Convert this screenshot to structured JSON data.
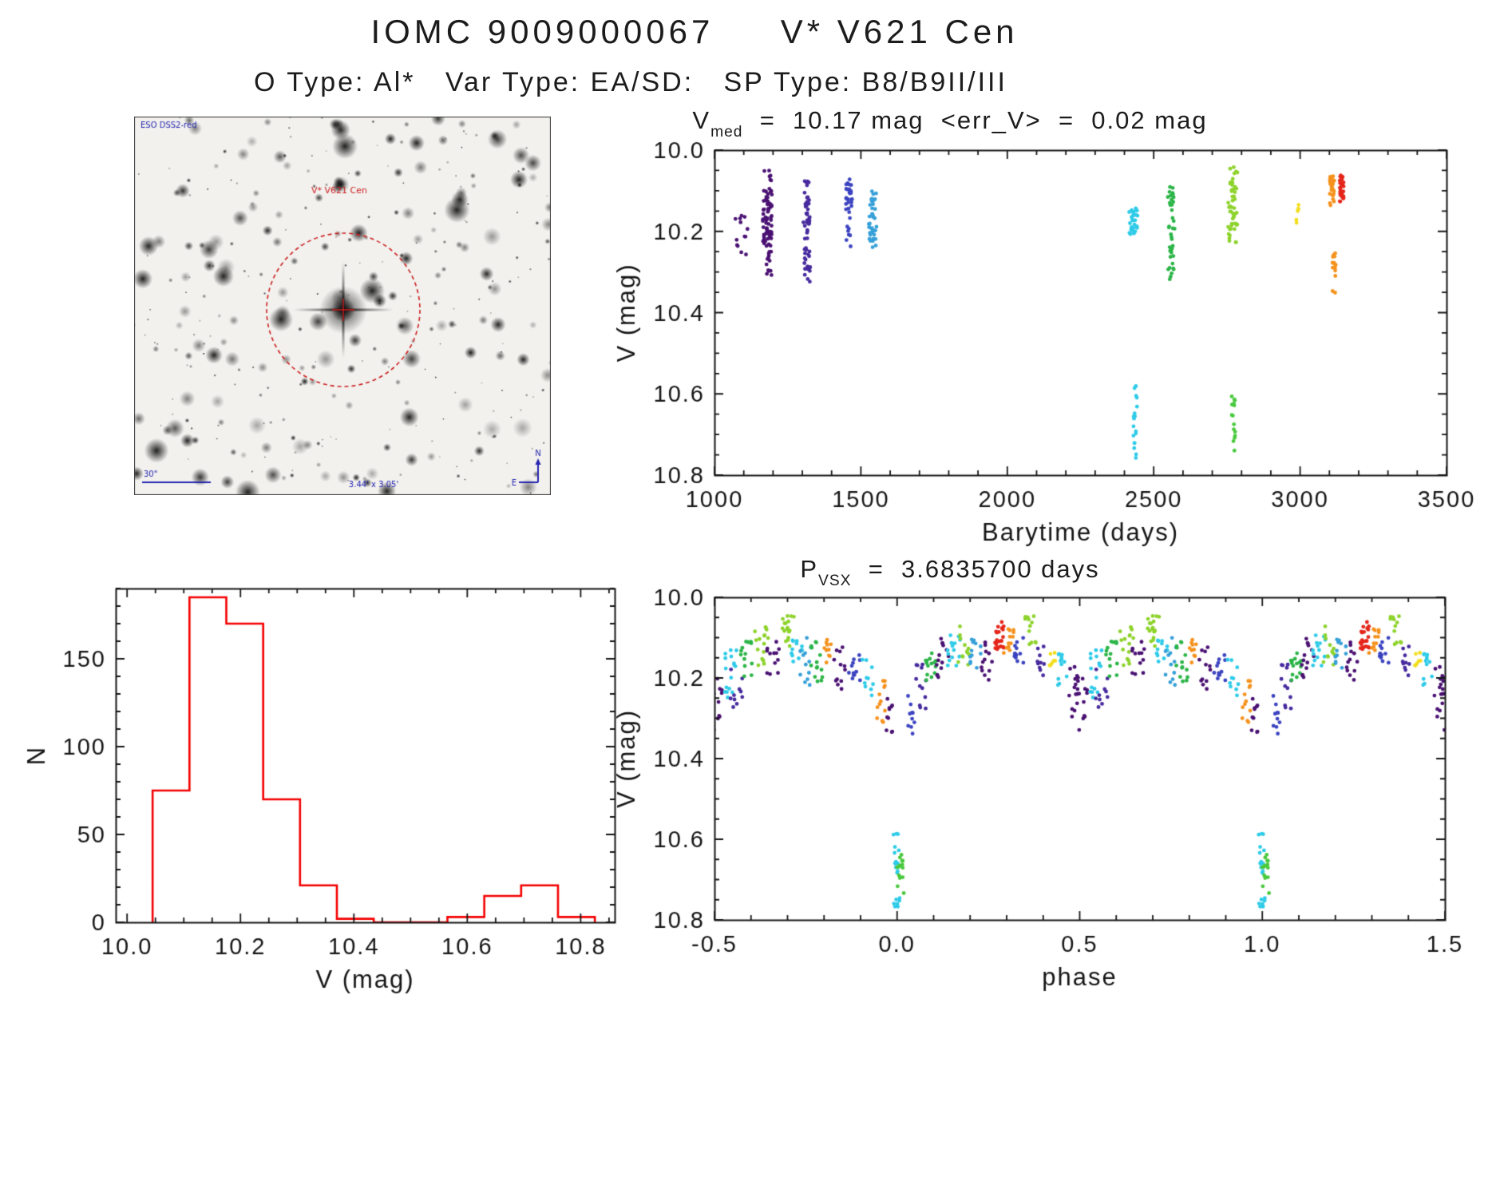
{
  "page": {
    "title_line1": "IOMC 9009000067     V* V621 Cen",
    "title_line2": "O Type: Al*   Var Type: EA/SD:   SP Type: B8/B9II/III",
    "text_color": "#1c1c1c"
  },
  "finding_chart": {
    "survey_label": "ESO DSS2-red",
    "star_label": "V* V621 Cen",
    "scale_label": "30\"",
    "fov_label": "3.44' x 3.05'",
    "compass_north": "N",
    "compass_east": "E",
    "annotation_color": "#cc2020",
    "text_color": "#2525b0",
    "seed": 9,
    "n_stars": 330
  },
  "chart_data": [
    {
      "id": "lightcurve",
      "type": "scatter",
      "title": {
        "base": "V",
        "sub": "med",
        "rest": "  =  10.17 mag  <err_V>  =  0.02 mag"
      },
      "xlabel": "Barytime (days)",
      "ylabel": "V (mag)",
      "xlim": [
        1000,
        3500
      ],
      "ylim": [
        10.0,
        10.8
      ],
      "y_inverted": true,
      "xticks": [
        1000,
        1500,
        2000,
        2500,
        3000,
        3500
      ],
      "xtick_labels": [
        "1000",
        "1500",
        "2000",
        "2500",
        "3000",
        "3500"
      ],
      "yticks": [
        10.0,
        10.2,
        10.4,
        10.6,
        10.8
      ],
      "ytick_labels": [
        "10.0",
        "10.2",
        "10.4",
        "10.6",
        "10.8"
      ],
      "xminor": 100,
      "yminor": 0.05,
      "seed": 3,
      "repeat_offsets": [
        0
      ],
      "clusters": [
        {
          "x": 1090,
          "w": 60,
          "y": [
            10.16,
            10.27
          ],
          "n": 13,
          "color": "#4a1173"
        },
        {
          "x": 1180,
          "w": 30,
          "y": [
            10.05,
            10.31
          ],
          "n": 58,
          "color": "#4a1173"
        },
        {
          "x": 1185,
          "w": 22,
          "y": [
            10.1,
            10.22
          ],
          "n": 30,
          "color": "#4a1173"
        },
        {
          "x": 1315,
          "w": 24,
          "y": [
            10.06,
            10.33
          ],
          "n": 38,
          "color": "#472a9e"
        },
        {
          "x": 1318,
          "w": 16,
          "y": [
            10.1,
            10.2
          ],
          "n": 20,
          "color": "#472a9e"
        },
        {
          "x": 1460,
          "w": 22,
          "y": [
            10.07,
            10.25
          ],
          "n": 34,
          "color": "#3b43c0"
        },
        {
          "x": 1540,
          "w": 28,
          "y": [
            10.1,
            10.24
          ],
          "n": 40,
          "color": "#36a0d8"
        },
        {
          "x": 2430,
          "w": 30,
          "y": [
            10.14,
            10.21
          ],
          "n": 30,
          "color": "#2ecbe8"
        },
        {
          "x": 2436,
          "w": 14,
          "y": [
            10.58,
            10.76
          ],
          "n": 18,
          "color": "#2ecbe8"
        },
        {
          "x": 2560,
          "w": 24,
          "y": [
            10.09,
            10.32
          ],
          "n": 38,
          "color": "#2bb547"
        },
        {
          "x": 2770,
          "w": 32,
          "y": [
            10.04,
            10.23
          ],
          "n": 52,
          "color": "#8ed32c"
        },
        {
          "x": 2772,
          "w": 12,
          "y": [
            10.58,
            10.74
          ],
          "n": 15,
          "color": "#49c93c"
        },
        {
          "x": 2990,
          "w": 10,
          "y": [
            10.12,
            10.18
          ],
          "n": 6,
          "color": "#f2de1e"
        },
        {
          "x": 3110,
          "w": 18,
          "y": [
            10.06,
            10.14
          ],
          "n": 32,
          "color": "#f5921d"
        },
        {
          "x": 3116,
          "w": 12,
          "y": [
            10.24,
            10.36
          ],
          "n": 14,
          "color": "#f5921d"
        },
        {
          "x": 3142,
          "w": 14,
          "y": [
            10.05,
            10.13
          ],
          "n": 30,
          "color": "#e5261b"
        }
      ]
    },
    {
      "id": "histogram",
      "type": "bar",
      "xlabel": "V (mag)",
      "ylabel": "N",
      "xlim": [
        9.98,
        10.86
      ],
      "ylim": [
        0,
        190
      ],
      "y_inverted": false,
      "xticks": [
        10.0,
        10.2,
        10.4,
        10.6,
        10.8
      ],
      "xtick_labels": [
        "10.0",
        "10.2",
        "10.4",
        "10.6",
        "10.8"
      ],
      "yticks": [
        0,
        50,
        100,
        150
      ],
      "ytick_labels": [
        "0",
        "50",
        "100",
        "150"
      ],
      "xminor": 0.05,
      "yminor": 10,
      "line_color": "#f40000",
      "bin_edges": [
        10.045,
        10.11,
        10.175,
        10.24,
        10.305,
        10.37,
        10.435,
        10.5,
        10.565,
        10.63,
        10.695,
        10.76,
        10.825
      ],
      "counts": [
        75,
        185,
        170,
        70,
        21,
        2,
        0,
        0,
        3,
        15,
        21,
        3
      ]
    },
    {
      "id": "phased",
      "type": "scatter",
      "title": {
        "base": "P",
        "sub": "VSX",
        "rest": "  =  3.6835700 days"
      },
      "xlabel": "phase",
      "ylabel": "V (mag)",
      "xlim": [
        -0.5,
        1.5
      ],
      "ylim": [
        10.0,
        10.8
      ],
      "y_inverted": true,
      "xticks": [
        -0.5,
        0.0,
        0.5,
        1.0,
        1.5
      ],
      "xtick_labels": [
        "-0.5",
        "0.0",
        "0.5",
        "1.0",
        "1.5"
      ],
      "yticks": [
        10.0,
        10.2,
        10.4,
        10.6,
        10.8
      ],
      "ytick_labels": [
        "10.0",
        "10.2",
        "10.4",
        "10.6",
        "10.8"
      ],
      "xminor": 0.1,
      "yminor": 0.05,
      "seed": 5,
      "repeat_offsets": [
        0,
        1,
        2
      ],
      "clusters": [
        {
          "x": -0.5,
          "w": 0.05,
          "y": [
            10.2,
            10.33
          ],
          "n": 14,
          "color": "#4a1173"
        },
        {
          "x": -0.46,
          "w": 0.04,
          "y": [
            10.13,
            10.25
          ],
          "n": 16,
          "color": "#2ecbe8"
        },
        {
          "x": -0.44,
          "w": 0.035,
          "y": [
            10.17,
            10.28
          ],
          "n": 10,
          "color": "#472a9e"
        },
        {
          "x": -0.41,
          "w": 0.04,
          "y": [
            10.1,
            10.2
          ],
          "n": 14,
          "color": "#2bb547"
        },
        {
          "x": -0.37,
          "w": 0.04,
          "y": [
            10.07,
            10.17
          ],
          "n": 16,
          "color": "#8ed32c"
        },
        {
          "x": -0.34,
          "w": 0.035,
          "y": [
            10.11,
            10.21
          ],
          "n": 12,
          "color": "#4a1173"
        },
        {
          "x": -0.3,
          "w": 0.035,
          "y": [
            10.04,
            10.14
          ],
          "n": 18,
          "color": "#8ed32c"
        },
        {
          "x": -0.275,
          "w": 0.03,
          "y": [
            10.09,
            10.17
          ],
          "n": 12,
          "color": "#2ecbe8"
        },
        {
          "x": -0.25,
          "w": 0.03,
          "y": [
            10.1,
            10.22
          ],
          "n": 12,
          "color": "#36a0d8"
        },
        {
          "x": -0.22,
          "w": 0.035,
          "y": [
            10.11,
            10.21
          ],
          "n": 14,
          "color": "#2bb547"
        },
        {
          "x": -0.19,
          "w": 0.03,
          "y": [
            10.1,
            10.18
          ],
          "n": 10,
          "color": "#f5921d"
        },
        {
          "x": -0.155,
          "w": 0.035,
          "y": [
            10.12,
            10.24
          ],
          "n": 12,
          "color": "#4a1173"
        },
        {
          "x": -0.115,
          "w": 0.035,
          "y": [
            10.13,
            10.23
          ],
          "n": 12,
          "color": "#3b43c0"
        },
        {
          "x": -0.08,
          "w": 0.03,
          "y": [
            10.15,
            10.25
          ],
          "n": 10,
          "color": "#2ecbe8"
        },
        {
          "x": -0.045,
          "w": 0.025,
          "y": [
            10.2,
            10.32
          ],
          "n": 12,
          "color": "#f5921d"
        },
        {
          "x": -0.02,
          "w": 0.02,
          "y": [
            10.25,
            10.35
          ],
          "n": 10,
          "color": "#4a1173"
        },
        {
          "x": 0.0,
          "w": 0.02,
          "y": [
            10.58,
            10.77
          ],
          "n": 20,
          "color": "#2ecbe8"
        },
        {
          "x": 0.01,
          "w": 0.02,
          "y": [
            10.58,
            10.74
          ],
          "n": 16,
          "color": "#49c93c"
        },
        {
          "x": 0.035,
          "w": 0.025,
          "y": [
            10.24,
            10.34
          ],
          "n": 10,
          "color": "#3b43c0"
        },
        {
          "x": 0.065,
          "w": 0.03,
          "y": [
            10.16,
            10.28
          ],
          "n": 12,
          "color": "#472a9e"
        },
        {
          "x": 0.095,
          "w": 0.035,
          "y": [
            10.12,
            10.22
          ],
          "n": 14,
          "color": "#2bb547"
        },
        {
          "x": 0.125,
          "w": 0.035,
          "y": [
            10.1,
            10.2
          ],
          "n": 14,
          "color": "#4a1173"
        },
        {
          "x": 0.155,
          "w": 0.035,
          "y": [
            10.08,
            10.18
          ],
          "n": 14,
          "color": "#2ecbe8"
        },
        {
          "x": 0.185,
          "w": 0.035,
          "y": [
            10.07,
            10.17
          ],
          "n": 12,
          "color": "#8ed32c"
        },
        {
          "x": 0.215,
          "w": 0.03,
          "y": [
            10.1,
            10.18
          ],
          "n": 12,
          "color": "#36a0d8"
        },
        {
          "x": 0.245,
          "w": 0.03,
          "y": [
            10.11,
            10.21
          ],
          "n": 12,
          "color": "#4a1173"
        },
        {
          "x": 0.28,
          "w": 0.025,
          "y": [
            10.06,
            10.13
          ],
          "n": 24,
          "color": "#e5261b"
        },
        {
          "x": 0.305,
          "w": 0.03,
          "y": [
            10.07,
            10.15
          ],
          "n": 12,
          "color": "#f5921d"
        },
        {
          "x": 0.335,
          "w": 0.03,
          "y": [
            10.1,
            10.18
          ],
          "n": 12,
          "color": "#3b43c0"
        },
        {
          "x": 0.365,
          "w": 0.03,
          "y": [
            10.04,
            10.12
          ],
          "n": 12,
          "color": "#8ed32c"
        },
        {
          "x": 0.395,
          "w": 0.03,
          "y": [
            10.12,
            10.2
          ],
          "n": 10,
          "color": "#472a9e"
        },
        {
          "x": 0.425,
          "w": 0.02,
          "y": [
            10.12,
            10.17
          ],
          "n": 7,
          "color": "#f2de1e"
        },
        {
          "x": 0.455,
          "w": 0.03,
          "y": [
            10.14,
            10.24
          ],
          "n": 12,
          "color": "#2ecbe8"
        },
        {
          "x": 0.485,
          "w": 0.03,
          "y": [
            10.17,
            10.3
          ],
          "n": 12,
          "color": "#4a1173"
        }
      ]
    }
  ]
}
